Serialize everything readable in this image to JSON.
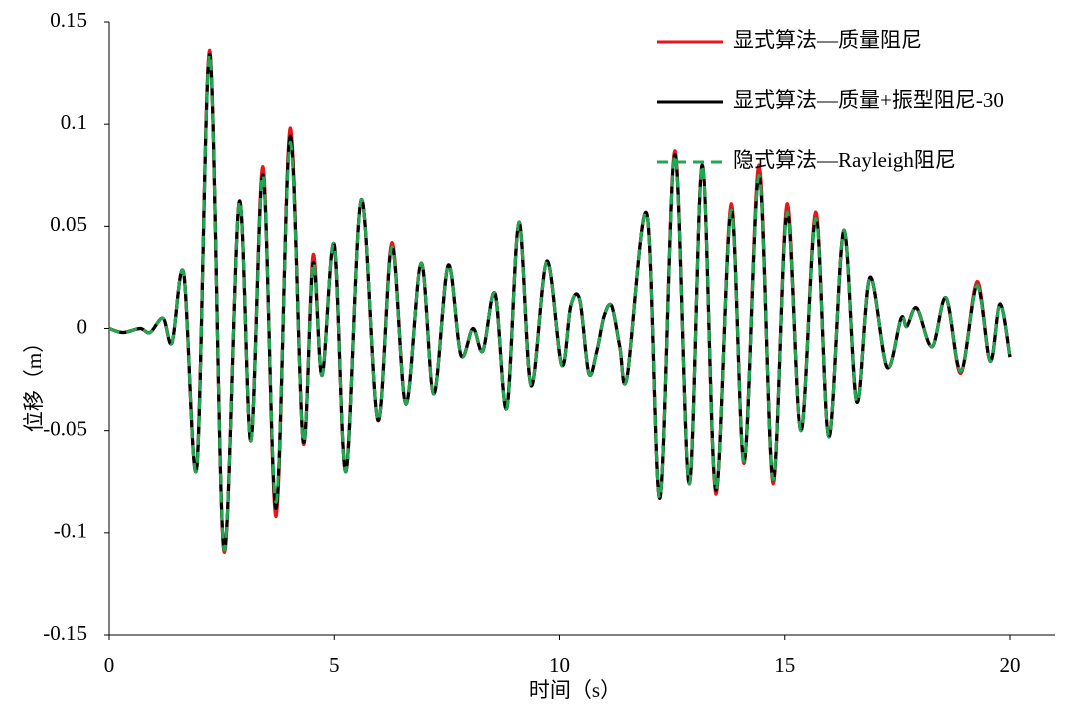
{
  "chart_data": {
    "type": "line",
    "xlabel": "时间（s）",
    "ylabel": "位移（m）",
    "x": [
      0,
      0.31,
      0.69,
      0.91,
      1.2,
      1.4,
      1.66,
      1.95,
      2.24,
      2.55,
      2.89,
      3.15,
      3.42,
      3.71,
      4.02,
      4.31,
      4.53,
      4.73,
      5.0,
      5.26,
      5.6,
      5.97,
      6.28,
      6.59,
      6.93,
      7.21,
      7.53,
      7.81,
      8.08,
      8.3,
      8.57,
      8.83,
      9.1,
      9.37,
      9.72,
      10.05,
      10.25,
      10.45,
      10.65,
      10.83,
      10.99,
      11.16,
      11.34,
      11.5,
      11.94,
      12.23,
      12.56,
      12.88,
      13.17,
      13.47,
      13.81,
      14.1,
      14.43,
      14.74,
      15.05,
      15.36,
      15.69,
      15.98,
      16.31,
      16.6,
      16.89,
      17.27,
      17.58,
      17.71,
      17.93,
      18.27,
      18.58,
      18.91,
      19.27,
      19.56,
      19.78,
      20.0
    ],
    "series": [
      {
        "name": "显式算法—质量阻尼",
        "color": "#e8161b",
        "dashed": false,
        "values": [
          0,
          -0.002,
          0,
          -0.002,
          0.005,
          -0.007,
          0.027,
          -0.068,
          0.136,
          -0.109,
          0.062,
          -0.055,
          0.079,
          -0.092,
          0.098,
          -0.056,
          0.036,
          -0.023,
          0.041,
          -0.07,
          0.063,
          -0.045,
          0.042,
          -0.037,
          0.032,
          -0.032,
          0.031,
          -0.013,
          0,
          -0.011,
          0.017,
          -0.039,
          0.052,
          -0.028,
          0.033,
          -0.018,
          0.011,
          0.014,
          -0.022,
          -0.011,
          0.006,
          0.011,
          -0.009,
          -0.024,
          0.056,
          -0.083,
          0.087,
          -0.076,
          0.08,
          -0.081,
          0.061,
          -0.066,
          0.08,
          -0.076,
          0.061,
          -0.05,
          0.057,
          -0.053,
          0.048,
          -0.036,
          0.025,
          -0.019,
          0.005,
          0.001,
          0.01,
          -0.009,
          0.015,
          -0.022,
          0.023,
          -0.016,
          0.012,
          -0.014
        ]
      },
      {
        "name": "显式算法—质量+振型阻尼-30",
        "color": "#000000",
        "dashed": false,
        "values": [
          0,
          -0.002,
          0,
          -0.002,
          0.005,
          -0.007,
          0.027,
          -0.068,
          0.134,
          -0.108,
          0.062,
          -0.055,
          0.075,
          -0.088,
          0.094,
          -0.055,
          0.032,
          -0.023,
          0.041,
          -0.07,
          0.063,
          -0.045,
          0.04,
          -0.037,
          0.032,
          -0.032,
          0.031,
          -0.013,
          0,
          -0.011,
          0.017,
          -0.039,
          0.052,
          -0.028,
          0.033,
          -0.018,
          0.011,
          0.014,
          -0.022,
          -0.011,
          0.006,
          0.011,
          -0.009,
          -0.024,
          0.056,
          -0.083,
          0.085,
          -0.076,
          0.08,
          -0.079,
          0.058,
          -0.065,
          0.075,
          -0.074,
          0.057,
          -0.05,
          0.054,
          -0.053,
          0.048,
          -0.036,
          0.025,
          -0.019,
          0.005,
          0.001,
          0.01,
          -0.009,
          0.015,
          -0.021,
          0.021,
          -0.016,
          0.012,
          -0.014
        ]
      },
      {
        "name": "隐式算法—Rayleigh阻尼",
        "color": "#1fa84f",
        "dashed": true,
        "values": [
          0,
          -0.002,
          0,
          -0.002,
          0.005,
          -0.007,
          0.027,
          -0.068,
          0.134,
          -0.108,
          0.062,
          -0.055,
          0.075,
          -0.085,
          0.091,
          -0.055,
          0.032,
          -0.023,
          0.041,
          -0.07,
          0.063,
          -0.045,
          0.04,
          -0.037,
          0.032,
          -0.032,
          0.031,
          -0.013,
          0,
          -0.011,
          0.017,
          -0.039,
          0.052,
          -0.028,
          0.033,
          -0.018,
          0.011,
          0.014,
          -0.022,
          -0.011,
          0.006,
          0.011,
          -0.009,
          -0.024,
          0.056,
          -0.083,
          0.085,
          -0.076,
          0.08,
          -0.079,
          0.058,
          -0.065,
          0.075,
          -0.074,
          0.057,
          -0.05,
          0.054,
          -0.053,
          0.048,
          -0.036,
          0.025,
          -0.019,
          0.005,
          0.001,
          0.01,
          -0.009,
          0.015,
          -0.021,
          0.021,
          -0.016,
          0.012,
          -0.014
        ]
      }
    ],
    "xlim": [
      0,
      20
    ],
    "xticks": [
      0,
      5,
      10,
      15,
      20
    ],
    "ylim": [
      -0.15,
      0.15
    ],
    "yticks": [
      -0.15,
      -0.1,
      -0.05,
      0,
      0.05,
      0.1,
      0.15
    ],
    "grid": false,
    "legend": "upper right"
  }
}
